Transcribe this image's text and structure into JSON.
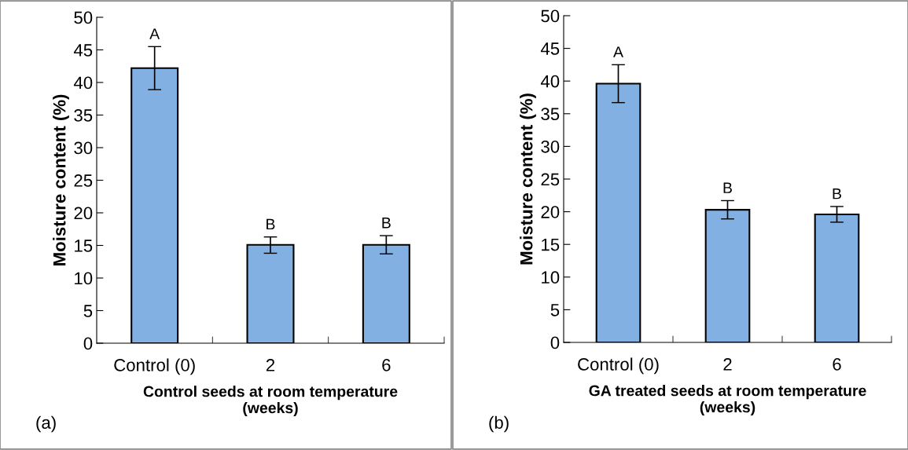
{
  "chart_data": [
    {
      "type": "bar",
      "categories": [
        "Control (0)",
        "2",
        "6"
      ],
      "values": [
        42.2,
        15.1,
        15.1
      ],
      "errors": [
        [
          38.9,
          45.5
        ],
        [
          13.8,
          16.3
        ],
        [
          13.7,
          16.5
        ]
      ],
      "color": "#82b0e3",
      "ylabel": "Moisture content (%)",
      "xlabel": "Control seeds at room temperature\n(weeks)",
      "ylim": [
        0,
        50
      ],
      "yticks": [
        0,
        5,
        10,
        15,
        20,
        25,
        30,
        35,
        40,
        45,
        50
      ],
      "grid": false,
      "legend": false,
      "annotations": [
        {
          "text": "A",
          "x": "Control (0)",
          "y": 45.5
        },
        {
          "text": "B",
          "x": "2",
          "y": 16.3
        },
        {
          "text": "B",
          "x": "6",
          "y": 16.5
        },
        "(a)"
      ]
    },
    {
      "type": "bar",
      "categories": [
        "Control (0)",
        "2",
        "6"
      ],
      "values": [
        39.6,
        20.3,
        19.6
      ],
      "errors": [
        [
          36.7,
          42.5
        ],
        [
          18.9,
          21.7
        ],
        [
          18.4,
          20.8
        ]
      ],
      "color": "#82b0e3",
      "ylabel": "Moisture content (%)",
      "xlabel": "GA treated seeds at room temperature\n(weeks)",
      "ylim": [
        0,
        50
      ],
      "yticks": [
        0,
        5,
        10,
        15,
        20,
        25,
        30,
        35,
        40,
        45,
        50
      ],
      "grid": false,
      "legend": false,
      "annotations": [
        {
          "text": "A",
          "x": "Control (0)",
          "y": 42.5
        },
        {
          "text": "B",
          "x": "2",
          "y": 21.7
        },
        {
          "text": "B",
          "x": "6",
          "y": 20.8
        },
        "(b)"
      ]
    }
  ]
}
